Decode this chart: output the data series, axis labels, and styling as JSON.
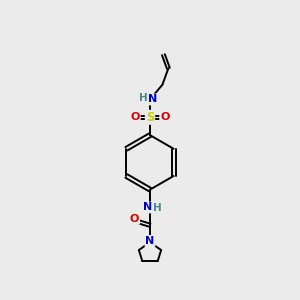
{
  "bg_color": "#ebebeb",
  "atom_colors": {
    "C": "#000000",
    "N": "#0000cc",
    "O": "#dd0000",
    "S": "#cccc00",
    "H": "#4a8888"
  },
  "bond_color": "#000000",
  "bond_width": 1.4,
  "fig_size": [
    3.0,
    3.0
  ],
  "dpi": 100
}
